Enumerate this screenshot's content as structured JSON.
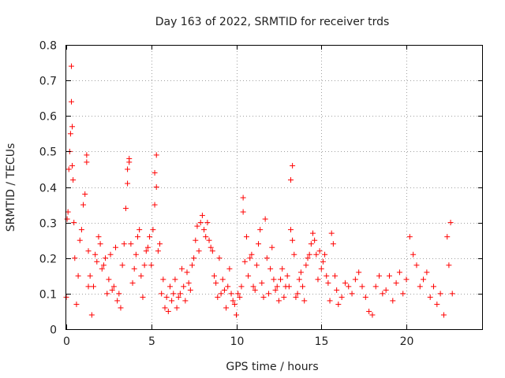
{
  "chart_data": {
    "type": "scatter",
    "title": "Day 163 of 2022, SRMTID for receiver trds",
    "xlabel": "GPS time / hours",
    "ylabel": "SRMTID / TECUs",
    "xlim": [
      0,
      24.5
    ],
    "ylim": [
      0,
      0.8
    ],
    "x_ticks": [
      0,
      5,
      10,
      15,
      20
    ],
    "y_ticks": [
      0,
      0.1,
      0.2,
      0.3,
      0.4,
      0.5,
      0.6,
      0.7,
      0.8
    ],
    "x_tick_labels": [
      "0",
      "5",
      "10",
      "15",
      "20"
    ],
    "y_tick_labels": [
      "0",
      "0.1",
      "0.2",
      "0.3",
      "0.4",
      "0.5",
      "0.6",
      "0.7",
      "0.8"
    ],
    "grid": true,
    "marker": "+",
    "marker_color": "#ff0000",
    "series": [
      {
        "name": "SRMTID",
        "x": [
          0.0,
          0.05,
          0.1,
          0.15,
          0.2,
          0.25,
          0.3,
          0.3,
          0.35,
          0.35,
          0.4,
          0.45,
          0.5,
          0.6,
          0.7,
          0.8,
          0.9,
          1.0,
          1.1,
          1.2,
          1.2,
          1.3,
          1.3,
          1.4,
          1.5,
          1.6,
          1.7,
          1.8,
          1.9,
          2.0,
          2.1,
          2.2,
          2.3,
          2.4,
          2.5,
          2.6,
          2.7,
          2.8,
          2.9,
          3.0,
          3.1,
          3.2,
          3.3,
          3.4,
          3.5,
          3.6,
          3.6,
          3.7,
          3.7,
          3.8,
          3.9,
          4.0,
          4.1,
          4.2,
          4.3,
          4.4,
          4.5,
          4.6,
          4.7,
          4.8,
          4.9,
          5.0,
          5.1,
          5.2,
          5.2,
          5.3,
          5.3,
          5.4,
          5.5,
          5.6,
          5.7,
          5.8,
          5.9,
          6.0,
          6.1,
          6.2,
          6.3,
          6.4,
          6.5,
          6.6,
          6.7,
          6.8,
          6.9,
          7.0,
          7.1,
          7.2,
          7.3,
          7.4,
          7.5,
          7.6,
          7.7,
          7.8,
          7.9,
          8.0,
          8.1,
          8.2,
          8.3,
          8.4,
          8.5,
          8.6,
          8.7,
          8.8,
          8.9,
          9.0,
          9.1,
          9.2,
          9.3,
          9.4,
          9.5,
          9.6,
          9.7,
          9.8,
          9.9,
          10.0,
          10.1,
          10.2,
          10.3,
          10.4,
          10.4,
          10.5,
          10.6,
          10.7,
          10.8,
          10.9,
          11.0,
          11.1,
          11.2,
          11.3,
          11.4,
          11.5,
          11.6,
          11.7,
          11.8,
          11.9,
          12.0,
          12.1,
          12.2,
          12.3,
          12.4,
          12.5,
          12.6,
          12.7,
          12.8,
          12.9,
          13.0,
          13.1,
          13.2,
          13.2,
          13.3,
          13.3,
          13.4,
          13.5,
          13.6,
          13.7,
          13.8,
          13.9,
          14.0,
          14.1,
          14.2,
          14.3,
          14.4,
          14.5,
          14.6,
          14.7,
          14.8,
          14.9,
          15.0,
          15.1,
          15.2,
          15.3,
          15.4,
          15.5,
          15.6,
          15.7,
          15.8,
          15.9,
          16.0,
          16.2,
          16.4,
          16.6,
          16.8,
          17.0,
          17.2,
          17.4,
          17.6,
          17.8,
          18.0,
          18.2,
          18.4,
          18.6,
          18.8,
          19.0,
          19.2,
          19.4,
          19.6,
          19.8,
          20.0,
          20.2,
          20.4,
          20.6,
          20.8,
          21.0,
          21.2,
          21.4,
          21.6,
          21.8,
          22.0,
          22.2,
          22.4,
          22.5,
          22.6,
          22.7
        ],
        "y": [
          0.09,
          0.31,
          0.33,
          0.45,
          0.5,
          0.55,
          0.74,
          0.64,
          0.57,
          0.46,
          0.42,
          0.3,
          0.2,
          0.07,
          0.15,
          0.25,
          0.28,
          0.35,
          0.38,
          0.47,
          0.49,
          0.22,
          0.12,
          0.15,
          0.04,
          0.12,
          0.21,
          0.19,
          0.26,
          0.24,
          0.17,
          0.18,
          0.2,
          0.1,
          0.14,
          0.21,
          0.11,
          0.12,
          0.23,
          0.08,
          0.1,
          0.06,
          0.18,
          0.24,
          0.34,
          0.41,
          0.45,
          0.47,
          0.48,
          0.24,
          0.13,
          0.17,
          0.21,
          0.26,
          0.28,
          0.15,
          0.09,
          0.18,
          0.22,
          0.23,
          0.26,
          0.18,
          0.28,
          0.35,
          0.44,
          0.49,
          0.4,
          0.22,
          0.24,
          0.1,
          0.14,
          0.06,
          0.09,
          0.05,
          0.12,
          0.08,
          0.1,
          0.14,
          0.06,
          0.09,
          0.1,
          0.17,
          0.12,
          0.08,
          0.16,
          0.13,
          0.11,
          0.18,
          0.2,
          0.25,
          0.29,
          0.22,
          0.3,
          0.32,
          0.28,
          0.26,
          0.3,
          0.25,
          0.23,
          0.22,
          0.15,
          0.13,
          0.09,
          0.2,
          0.1,
          0.14,
          0.11,
          0.06,
          0.12,
          0.17,
          0.1,
          0.08,
          0.07,
          0.04,
          0.1,
          0.09,
          0.12,
          0.33,
          0.37,
          0.19,
          0.26,
          0.15,
          0.2,
          0.21,
          0.12,
          0.11,
          0.18,
          0.24,
          0.28,
          0.13,
          0.09,
          0.31,
          0.2,
          0.1,
          0.17,
          0.23,
          0.14,
          0.11,
          0.12,
          0.08,
          0.14,
          0.17,
          0.09,
          0.12,
          0.15,
          0.12,
          0.28,
          0.42,
          0.46,
          0.25,
          0.21,
          0.09,
          0.1,
          0.14,
          0.16,
          0.12,
          0.08,
          0.18,
          0.2,
          0.21,
          0.24,
          0.27,
          0.25,
          0.21,
          0.14,
          0.22,
          0.17,
          0.19,
          0.21,
          0.15,
          0.13,
          0.08,
          0.27,
          0.24,
          0.15,
          0.11,
          0.07,
          0.09,
          0.13,
          0.12,
          0.1,
          0.14,
          0.16,
          0.12,
          0.09,
          0.05,
          0.04,
          0.12,
          0.15,
          0.1,
          0.11,
          0.15,
          0.08,
          0.13,
          0.16,
          0.1,
          0.14,
          0.26,
          0.21,
          0.18,
          0.12,
          0.14,
          0.16,
          0.09,
          0.12,
          0.07,
          0.1,
          0.04,
          0.26,
          0.18,
          0.3,
          0.1
        ]
      }
    ]
  }
}
